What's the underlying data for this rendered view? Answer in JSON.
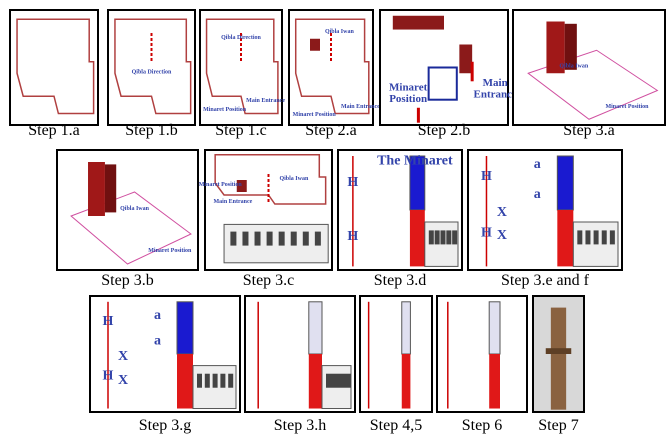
{
  "panels": [
    {
      "caption": "Step 1.a",
      "labels": []
    },
    {
      "caption": "Step 1.b",
      "labels": [
        "Qibla Direction"
      ]
    },
    {
      "caption": "Step 1.c",
      "labels": [
        "Qibla Direction",
        "Minaret Position",
        "Main Entrance"
      ]
    },
    {
      "caption": "Step 2.a",
      "labels": [
        "Qibla Iwan",
        "Minaret Position",
        "Main Entrance"
      ]
    },
    {
      "caption": "Step 2.b",
      "labels": [
        "Minaret",
        "Position",
        "Main",
        "Entrance"
      ]
    },
    {
      "caption": "Step 3.a",
      "labels": [
        "Qibla Iwan",
        "Minaret Position"
      ]
    },
    {
      "caption": "Step 3.b",
      "labels": [
        "Qibla Iwan",
        "Minaret Position"
      ]
    },
    {
      "caption": "Step 3.c",
      "labels": [
        "Minaret Position",
        "Main Entrance",
        "Qibla Iwan"
      ]
    },
    {
      "caption": "Step 3.d",
      "labels": [
        "The Minaret",
        "H",
        "H"
      ]
    },
    {
      "caption": "Step 3.e and f",
      "labels": [
        "H",
        "a",
        "a",
        "X",
        "H",
        "X"
      ]
    },
    {
      "caption": "Step 3.g",
      "labels": [
        "H",
        "a",
        "a",
        "X",
        "H",
        "X"
      ]
    },
    {
      "caption": "Step 3.h",
      "labels": []
    },
    {
      "caption": "Step 4,5",
      "labels": []
    },
    {
      "caption": "Step  6",
      "labels": []
    },
    {
      "caption": "Step 7",
      "labels": []
    }
  ]
}
